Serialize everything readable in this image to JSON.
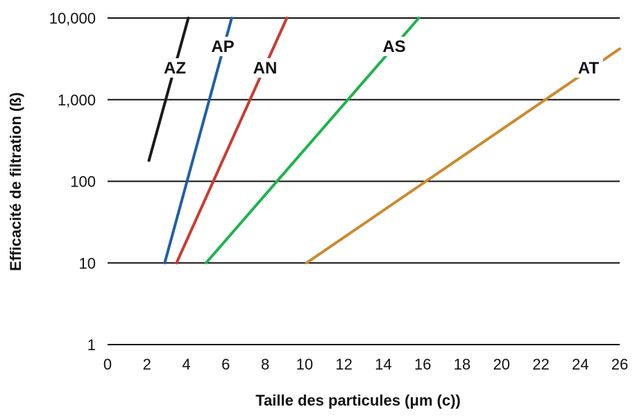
{
  "chart_data": {
    "type": "line",
    "title": "",
    "xlabel": "Taille des particules (μm (c))",
    "ylabel": "Efficacité de filtration (ß)",
    "xlim": [
      0,
      26
    ],
    "ylim": [
      1,
      10000
    ],
    "y_scale": "log",
    "grid": "horizontal",
    "x_ticks": [
      "0",
      "2",
      "4",
      "6",
      "8",
      "10",
      "12",
      "14",
      "16",
      "18",
      "20",
      "22",
      "24",
      "26"
    ],
    "y_ticks": [
      "1",
      "10",
      "100",
      "1,000",
      "10,000"
    ],
    "series": [
      {
        "name": "AZ",
        "color": "#1a1a1a",
        "points": [
          [
            2.1,
            180
          ],
          [
            4.1,
            10000
          ]
        ]
      },
      {
        "name": "AP",
        "color": "#1f5fa8",
        "points": [
          [
            2.9,
            10
          ],
          [
            6.3,
            10000
          ]
        ]
      },
      {
        "name": "AN",
        "color": "#cc3a30",
        "points": [
          [
            3.5,
            10
          ],
          [
            9.1,
            10000
          ]
        ]
      },
      {
        "name": "AS",
        "color": "#1db34a",
        "points": [
          [
            5.0,
            10
          ],
          [
            15.8,
            10000
          ]
        ]
      },
      {
        "name": "AT",
        "color": "#cc8a2e",
        "points": [
          [
            10.1,
            10
          ],
          [
            26.0,
            4200
          ]
        ]
      }
    ]
  }
}
